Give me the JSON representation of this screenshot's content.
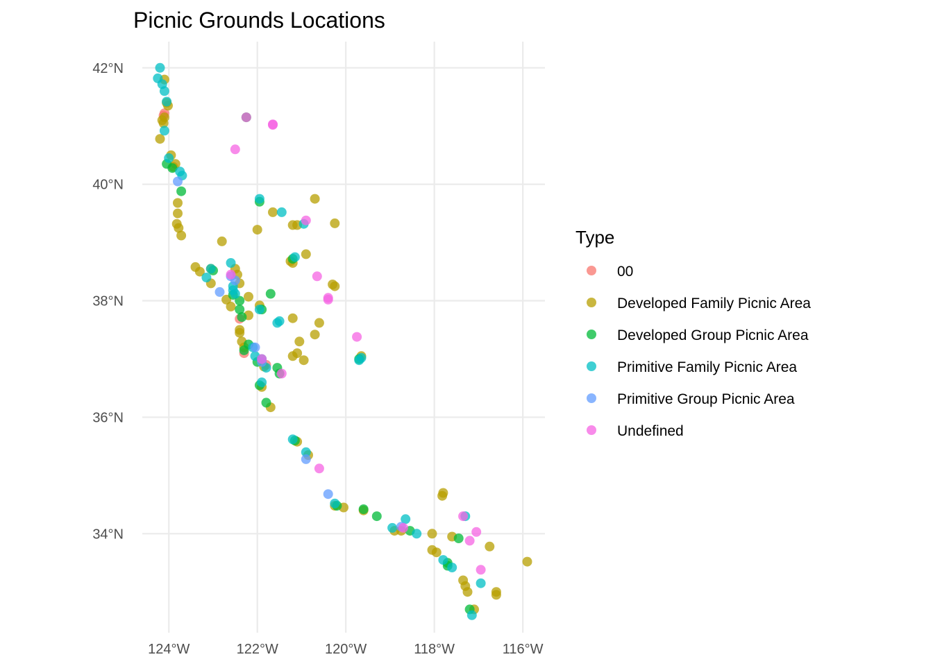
{
  "chart_data": {
    "type": "scatter",
    "title": "Picnic Grounds Locations",
    "xlabel": "",
    "ylabel": "",
    "xlim": [
      -124.6,
      -115.5
    ],
    "ylim": [
      32.3,
      42.45
    ],
    "x_ticks": [
      -124,
      -122,
      -120,
      -118,
      -116
    ],
    "x_tick_labels": [
      "124°W",
      "122°W",
      "120°W",
      "118°W",
      "116°W"
    ],
    "y_ticks": [
      34,
      36,
      38,
      40,
      42
    ],
    "y_tick_labels": [
      "34°N",
      "36°N",
      "38°N",
      "40°N",
      "42°N"
    ],
    "grid": true,
    "legend": {
      "title": "Type",
      "position": "right",
      "entries": [
        {
          "label": "00",
          "color": "#F8766D"
        },
        {
          "label": "Developed Family Picnic Area",
          "color": "#B79F00"
        },
        {
          "label": "Developed Group Picnic Area",
          "color": "#00BA38"
        },
        {
          "label": "Primitive Family Picnic Area",
          "color": "#00BFC4"
        },
        {
          "label": "Primitive Group Picnic Area",
          "color": "#619CFF"
        },
        {
          "label": "Undefined",
          "color": "#F564E3"
        }
      ]
    },
    "point_alpha": 0.75,
    "series": [
      {
        "name": "00",
        "color": "#F8766D",
        "points": [
          [
            -124.1,
            41.22
          ],
          [
            -122.4,
            37.69
          ],
          [
            -122.3,
            37.1
          ],
          [
            -121.8,
            36.9
          ],
          [
            -124.12,
            41.18
          ]
        ]
      },
      {
        "name": "Developed Family Picnic Area",
        "color": "#B79F00",
        "points": [
          [
            -124.1,
            41.8
          ],
          [
            -124.05,
            41.4
          ],
          [
            -124.02,
            41.35
          ],
          [
            -124.15,
            41.1
          ],
          [
            -124.2,
            40.78
          ],
          [
            -124.12,
            41.05
          ],
          [
            -124.1,
            41.15
          ],
          [
            -123.95,
            40.5
          ],
          [
            -123.9,
            40.3
          ],
          [
            -123.85,
            40.35
          ],
          [
            -123.8,
            39.68
          ],
          [
            -123.8,
            39.5
          ],
          [
            -123.82,
            39.32
          ],
          [
            -123.78,
            39.25
          ],
          [
            -123.72,
            39.12
          ],
          [
            -123.4,
            38.58
          ],
          [
            -123.3,
            38.5
          ],
          [
            -123.05,
            38.55
          ],
          [
            -123.05,
            38.3
          ],
          [
            -122.8,
            39.02
          ],
          [
            -122.7,
            38.02
          ],
          [
            -122.5,
            38.55
          ],
          [
            -122.45,
            38.45
          ],
          [
            -122.4,
            38.3
          ],
          [
            -122.6,
            37.9
          ],
          [
            -122.4,
            37.5
          ],
          [
            -122.4,
            37.45
          ],
          [
            -122.35,
            37.3
          ],
          [
            -122.3,
            37.2
          ],
          [
            -122.2,
            38.07
          ],
          [
            -122.2,
            37.75
          ],
          [
            -122.0,
            39.22
          ],
          [
            -121.95,
            37.92
          ],
          [
            -121.85,
            36.87
          ],
          [
            -121.9,
            36.52
          ],
          [
            -121.7,
            36.17
          ],
          [
            -121.65,
            39.52
          ],
          [
            -121.2,
            39.3
          ],
          [
            -121.1,
            39.3
          ],
          [
            -121.2,
            38.65
          ],
          [
            -121.25,
            38.68
          ],
          [
            -120.9,
            38.8
          ],
          [
            -121.2,
            37.7
          ],
          [
            -121.2,
            37.05
          ],
          [
            -121.1,
            37.1
          ],
          [
            -121.05,
            37.3
          ],
          [
            -120.95,
            36.98
          ],
          [
            -120.7,
            39.75
          ],
          [
            -120.25,
            39.33
          ],
          [
            -120.3,
            38.28
          ],
          [
            -120.25,
            38.25
          ],
          [
            -120.6,
            37.62
          ],
          [
            -120.7,
            37.42
          ],
          [
            -121.1,
            35.58
          ],
          [
            -120.85,
            35.35
          ],
          [
            -120.25,
            34.48
          ],
          [
            -120.05,
            34.45
          ],
          [
            -119.6,
            34.4
          ],
          [
            -118.9,
            34.05
          ],
          [
            -118.75,
            34.05
          ],
          [
            -118.05,
            34.0
          ],
          [
            -118.05,
            33.72
          ],
          [
            -117.95,
            33.68
          ],
          [
            -117.8,
            34.7
          ],
          [
            -117.82,
            34.65
          ],
          [
            -117.6,
            33.95
          ],
          [
            -117.35,
            33.2
          ],
          [
            -117.3,
            33.1
          ],
          [
            -117.25,
            33.0
          ],
          [
            -116.75,
            33.78
          ],
          [
            -116.6,
            33.0
          ],
          [
            -116.6,
            32.95
          ],
          [
            -115.9,
            33.52
          ],
          [
            -119.65,
            37.05
          ],
          [
            -117.1,
            32.7
          ]
        ]
      },
      {
        "name": "Developed Group Picnic Area",
        "color": "#00BA38",
        "points": [
          [
            -124.05,
            40.35
          ],
          [
            -123.92,
            40.28
          ],
          [
            -123.72,
            39.88
          ],
          [
            -123.0,
            38.52
          ],
          [
            -122.25,
            41.15
          ],
          [
            -122.55,
            38.1
          ],
          [
            -122.4,
            38.0
          ],
          [
            -122.4,
            37.85
          ],
          [
            -122.35,
            37.72
          ],
          [
            -122.3,
            37.15
          ],
          [
            -122.2,
            37.25
          ],
          [
            -122.0,
            36.95
          ],
          [
            -121.9,
            37.85
          ],
          [
            -121.95,
            36.55
          ],
          [
            -121.8,
            36.25
          ],
          [
            -121.7,
            38.12
          ],
          [
            -121.55,
            36.85
          ],
          [
            -121.5,
            36.75
          ],
          [
            -121.95,
            39.7
          ],
          [
            -121.2,
            38.72
          ],
          [
            -119.7,
            37.0
          ],
          [
            -120.2,
            34.48
          ],
          [
            -119.6,
            34.42
          ],
          [
            -119.3,
            34.3
          ],
          [
            -118.55,
            34.05
          ],
          [
            -117.7,
            33.5
          ],
          [
            -117.7,
            33.45
          ],
          [
            -117.45,
            33.92
          ],
          [
            -117.2,
            32.7
          ],
          [
            -121.15,
            35.6
          ]
        ]
      },
      {
        "name": "Primitive Family Picnic Area",
        "color": "#00BFC4",
        "points": [
          [
            -124.2,
            42.0
          ],
          [
            -124.25,
            41.82
          ],
          [
            -124.15,
            41.72
          ],
          [
            -124.1,
            41.6
          ],
          [
            -124.05,
            41.42
          ],
          [
            -124.1,
            40.92
          ],
          [
            -124.0,
            40.45
          ],
          [
            -123.75,
            40.22
          ],
          [
            -123.7,
            40.15
          ],
          [
            -122.6,
            38.65
          ],
          [
            -122.55,
            38.18
          ],
          [
            -122.5,
            38.12
          ],
          [
            -122.55,
            38.25
          ],
          [
            -123.15,
            38.4
          ],
          [
            -122.1,
            37.2
          ],
          [
            -121.9,
            37.0
          ],
          [
            -121.9,
            36.6
          ],
          [
            -121.8,
            36.85
          ],
          [
            -121.95,
            39.75
          ],
          [
            -121.45,
            39.52
          ],
          [
            -121.5,
            37.65
          ],
          [
            -121.55,
            37.62
          ],
          [
            -121.15,
            38.75
          ],
          [
            -120.95,
            39.32
          ],
          [
            -121.2,
            35.62
          ],
          [
            -120.9,
            35.4
          ],
          [
            -120.25,
            34.52
          ],
          [
            -119.65,
            37.02
          ],
          [
            -119.7,
            36.98
          ],
          [
            -118.95,
            34.1
          ],
          [
            -118.65,
            34.25
          ],
          [
            -118.4,
            34.0
          ],
          [
            -117.8,
            33.55
          ],
          [
            -117.6,
            33.42
          ],
          [
            -117.3,
            34.3
          ],
          [
            -116.95,
            33.15
          ],
          [
            -117.15,
            32.6
          ],
          [
            -121.95,
            37.85
          ],
          [
            -123.05,
            38.55
          ],
          [
            -122.05,
            37.05
          ]
        ]
      },
      {
        "name": "Primitive Group Picnic Area",
        "color": "#619CFF",
        "points": [
          [
            -123.8,
            40.05
          ],
          [
            -122.85,
            38.15
          ],
          [
            -122.5,
            38.35
          ],
          [
            -122.05,
            37.2
          ],
          [
            -121.9,
            36.95
          ],
          [
            -120.9,
            35.28
          ],
          [
            -120.4,
            34.68
          ],
          [
            -118.75,
            34.12
          ],
          [
            -122.6,
            38.42
          ]
        ]
      },
      {
        "name": "Undefined",
        "color": "#F564E3",
        "points": [
          [
            -122.5,
            40.6
          ],
          [
            -121.65,
            41.03
          ],
          [
            -122.25,
            41.15
          ],
          [
            -120.9,
            39.38
          ],
          [
            -120.65,
            38.42
          ],
          [
            -120.4,
            38.02
          ],
          [
            -121.9,
            37.0
          ],
          [
            -121.45,
            36.75
          ],
          [
            -122.6,
            38.45
          ],
          [
            -120.6,
            35.12
          ],
          [
            -119.75,
            37.38
          ],
          [
            -118.7,
            34.1
          ],
          [
            -117.35,
            34.3
          ],
          [
            -117.2,
            33.88
          ],
          [
            -117.05,
            34.03
          ],
          [
            -116.95,
            33.38
          ],
          [
            -121.65,
            41.02
          ],
          [
            -120.4,
            38.05
          ]
        ]
      }
    ]
  }
}
